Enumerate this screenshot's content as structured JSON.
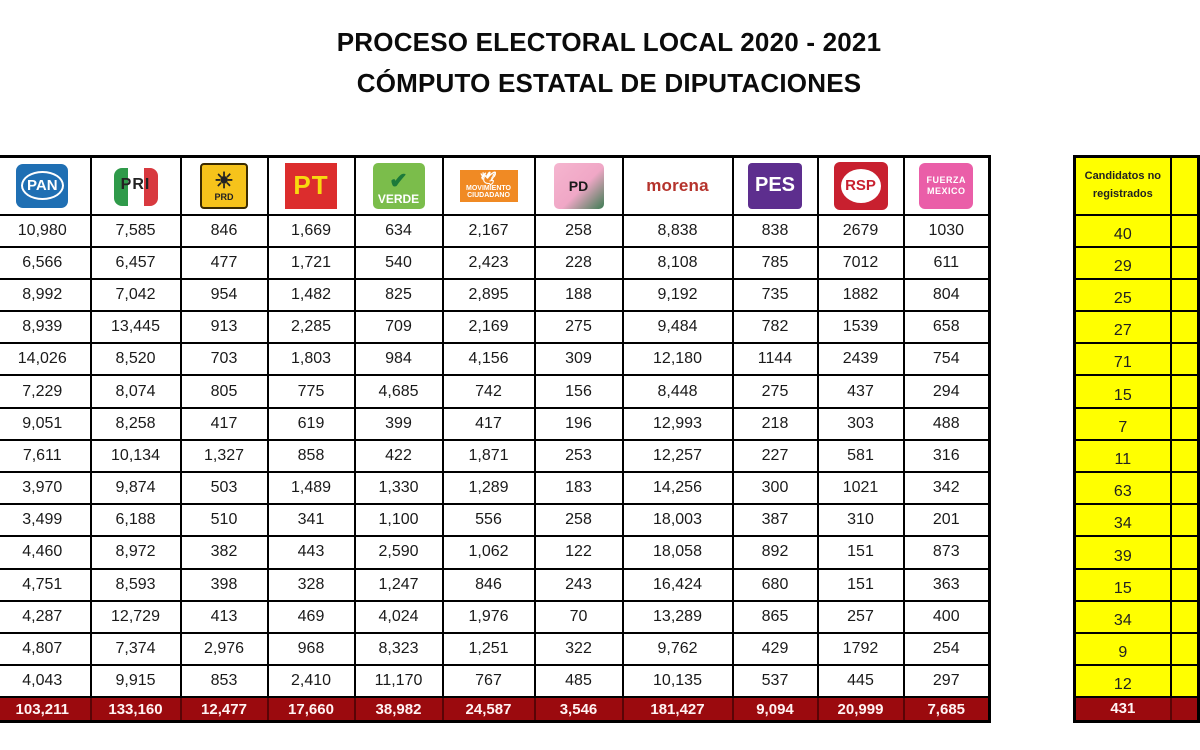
{
  "header": {
    "title_line1": "PROCESO ELECTORAL LOCAL 2020 - 2021",
    "title_line2": "CÓMPUTO ESTATAL DE DIPUTACIONES"
  },
  "parties": [
    {
      "key": "pan",
      "label": "PAN",
      "icon": "pan-logo-icon",
      "color": "#1f6fb3"
    },
    {
      "key": "pri",
      "label": "PRI",
      "icon": "pri-logo-icon",
      "color": "#d8393f"
    },
    {
      "key": "prd",
      "label": "PRD",
      "icon": "prd-logo-icon",
      "color": "#f6c31b"
    },
    {
      "key": "pt",
      "label": "PT",
      "icon": "pt-logo-icon",
      "color": "#dc2d2d"
    },
    {
      "key": "verde",
      "label": "VERDE",
      "icon": "verde-logo-icon",
      "color": "#7bbd4b"
    },
    {
      "key": "mc",
      "label": "MOVIMIENTO CIUDADANO",
      "icon": "movimiento-ciudadano-logo-icon",
      "color": "#f08a24"
    },
    {
      "key": "pd",
      "label": "PD",
      "icon": "pd-logo-icon",
      "color": "#f0a7c6"
    },
    {
      "key": "morena",
      "label": "morena",
      "icon": "morena-logo-icon",
      "color": "#b5332c"
    },
    {
      "key": "pes",
      "label": "PES",
      "icon": "pes-logo-icon",
      "color": "#5d2e8e"
    },
    {
      "key": "rsp",
      "label": "RSP",
      "icon": "rsp-logo-icon",
      "color": "#c8202f"
    },
    {
      "key": "fxm",
      "label": "FUERZA MÉXICO",
      "icon": "fuerza-mexico-logo-icon",
      "color": "#ea5ea8"
    }
  ],
  "logo_text": {
    "pan": "PAN",
    "pri": "PRI",
    "prd": "PRD",
    "pt": "PT",
    "verde": "VERDE",
    "mc_top": "MOVIMIENTO",
    "mc_bottom": "CIUDADANO",
    "pd": "PD",
    "morena": "morena",
    "pes": "PES",
    "rsp": "RSP",
    "fxm_top": "FUERZA",
    "fxm_bottom": "MEXICO"
  },
  "rows": [
    [
      "10,980",
      "7,585",
      "846",
      "1,669",
      "634",
      "2,167",
      "258",
      "8,838",
      "838",
      "2679",
      "1030"
    ],
    [
      "6,566",
      "6,457",
      "477",
      "1,721",
      "540",
      "2,423",
      "228",
      "8,108",
      "785",
      "7012",
      "611"
    ],
    [
      "8,992",
      "7,042",
      "954",
      "1,482",
      "825",
      "2,895",
      "188",
      "9,192",
      "735",
      "1882",
      "804"
    ],
    [
      "8,939",
      "13,445",
      "913",
      "2,285",
      "709",
      "2,169",
      "275",
      "9,484",
      "782",
      "1539",
      "658"
    ],
    [
      "14,026",
      "8,520",
      "703",
      "1,803",
      "984",
      "4,156",
      "309",
      "12,180",
      "1144",
      "2439",
      "754"
    ],
    [
      "7,229",
      "8,074",
      "805",
      "775",
      "4,685",
      "742",
      "156",
      "8,448",
      "275",
      "437",
      "294"
    ],
    [
      "9,051",
      "8,258",
      "417",
      "619",
      "399",
      "417",
      "196",
      "12,993",
      "218",
      "303",
      "488"
    ],
    [
      "7,611",
      "10,134",
      "1,327",
      "858",
      "422",
      "1,871",
      "253",
      "12,257",
      "227",
      "581",
      "316"
    ],
    [
      "3,970",
      "9,874",
      "503",
      "1,489",
      "1,330",
      "1,289",
      "183",
      "14,256",
      "300",
      "1021",
      "342"
    ],
    [
      "3,499",
      "6,188",
      "510",
      "341",
      "1,100",
      "556",
      "258",
      "18,003",
      "387",
      "310",
      "201"
    ],
    [
      "4,460",
      "8,972",
      "382",
      "443",
      "2,590",
      "1,062",
      "122",
      "18,058",
      "892",
      "151",
      "873"
    ],
    [
      "4,751",
      "8,593",
      "398",
      "328",
      "1,247",
      "846",
      "243",
      "16,424",
      "680",
      "151",
      "363"
    ],
    [
      "4,287",
      "12,729",
      "413",
      "469",
      "4,024",
      "1,976",
      "70",
      "13,289",
      "865",
      "257",
      "400"
    ],
    [
      "4,807",
      "7,374",
      "2,976",
      "968",
      "8,323",
      "1,251",
      "322",
      "9,762",
      "429",
      "1792",
      "254"
    ],
    [
      "4,043",
      "9,915",
      "853",
      "2,410",
      "11,170",
      "767",
      "485",
      "10,135",
      "537",
      "445",
      "297"
    ]
  ],
  "totals": [
    "103,211",
    "133,160",
    "12,477",
    "17,660",
    "38,982",
    "24,587",
    "3,546",
    "181,427",
    "9,094",
    "20,999",
    "7,685"
  ],
  "side_table": {
    "header_line1": "Candidatos no",
    "header_line2": "registrados",
    "values": [
      "40",
      "29",
      "25",
      "27",
      "71",
      "15",
      "7",
      "11",
      "63",
      "34",
      "39",
      "15",
      "34",
      "9",
      "12"
    ],
    "total": "431"
  },
  "colors": {
    "total_row_bg": "#9b0a0e",
    "side_table_bg": "#ffff00",
    "border": "#000000"
  }
}
